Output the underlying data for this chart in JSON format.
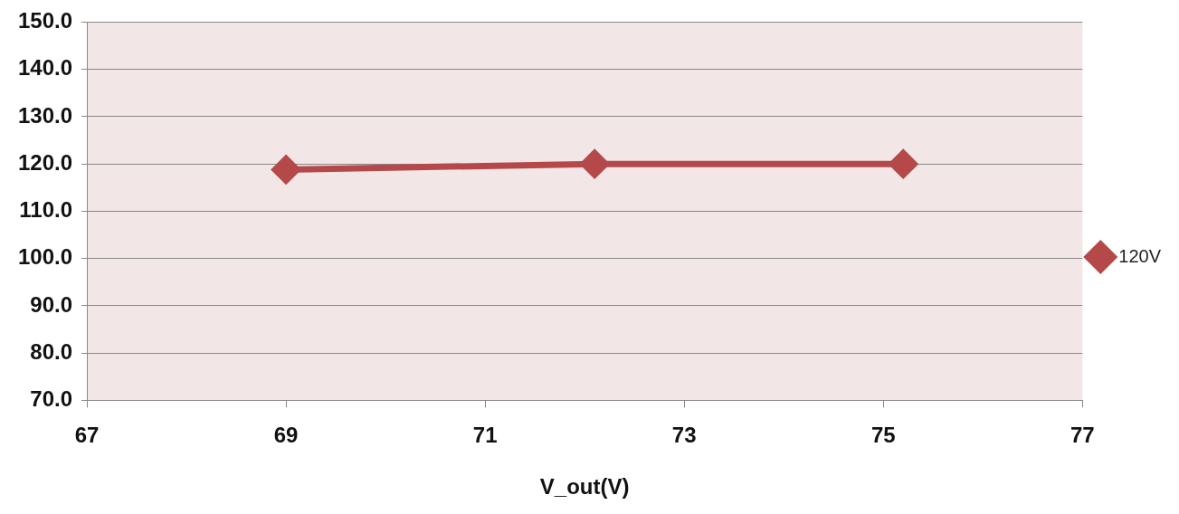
{
  "chart_data": {
    "type": "line",
    "xlabel": "V_out(V)",
    "x": [
      69,
      72.1,
      75.2
    ],
    "series": [
      {
        "name": "120V",
        "color": "#b5494a",
        "values": [
          118.8,
          120,
          120
        ]
      }
    ],
    "xlim": [
      67,
      77
    ],
    "xticks": [
      67,
      69,
      71,
      73,
      75,
      77
    ],
    "ylim": [
      70,
      150
    ],
    "yticks": [
      {
        "value": 70,
        "label": "70.0"
      },
      {
        "value": 80,
        "label": "80.0"
      },
      {
        "value": 90,
        "label": "90.0"
      },
      {
        "value": 100,
        "label": "100.0"
      },
      {
        "value": 110,
        "label": "110.0"
      },
      {
        "value": 120,
        "label": "120.0"
      },
      {
        "value": 130,
        "label": "130.0"
      },
      {
        "value": 140,
        "label": "140.0"
      },
      {
        "value": 150,
        "label": "150.0"
      }
    ],
    "grid": "y",
    "legend": "right",
    "marker": "diamond",
    "line_style": "solid"
  }
}
